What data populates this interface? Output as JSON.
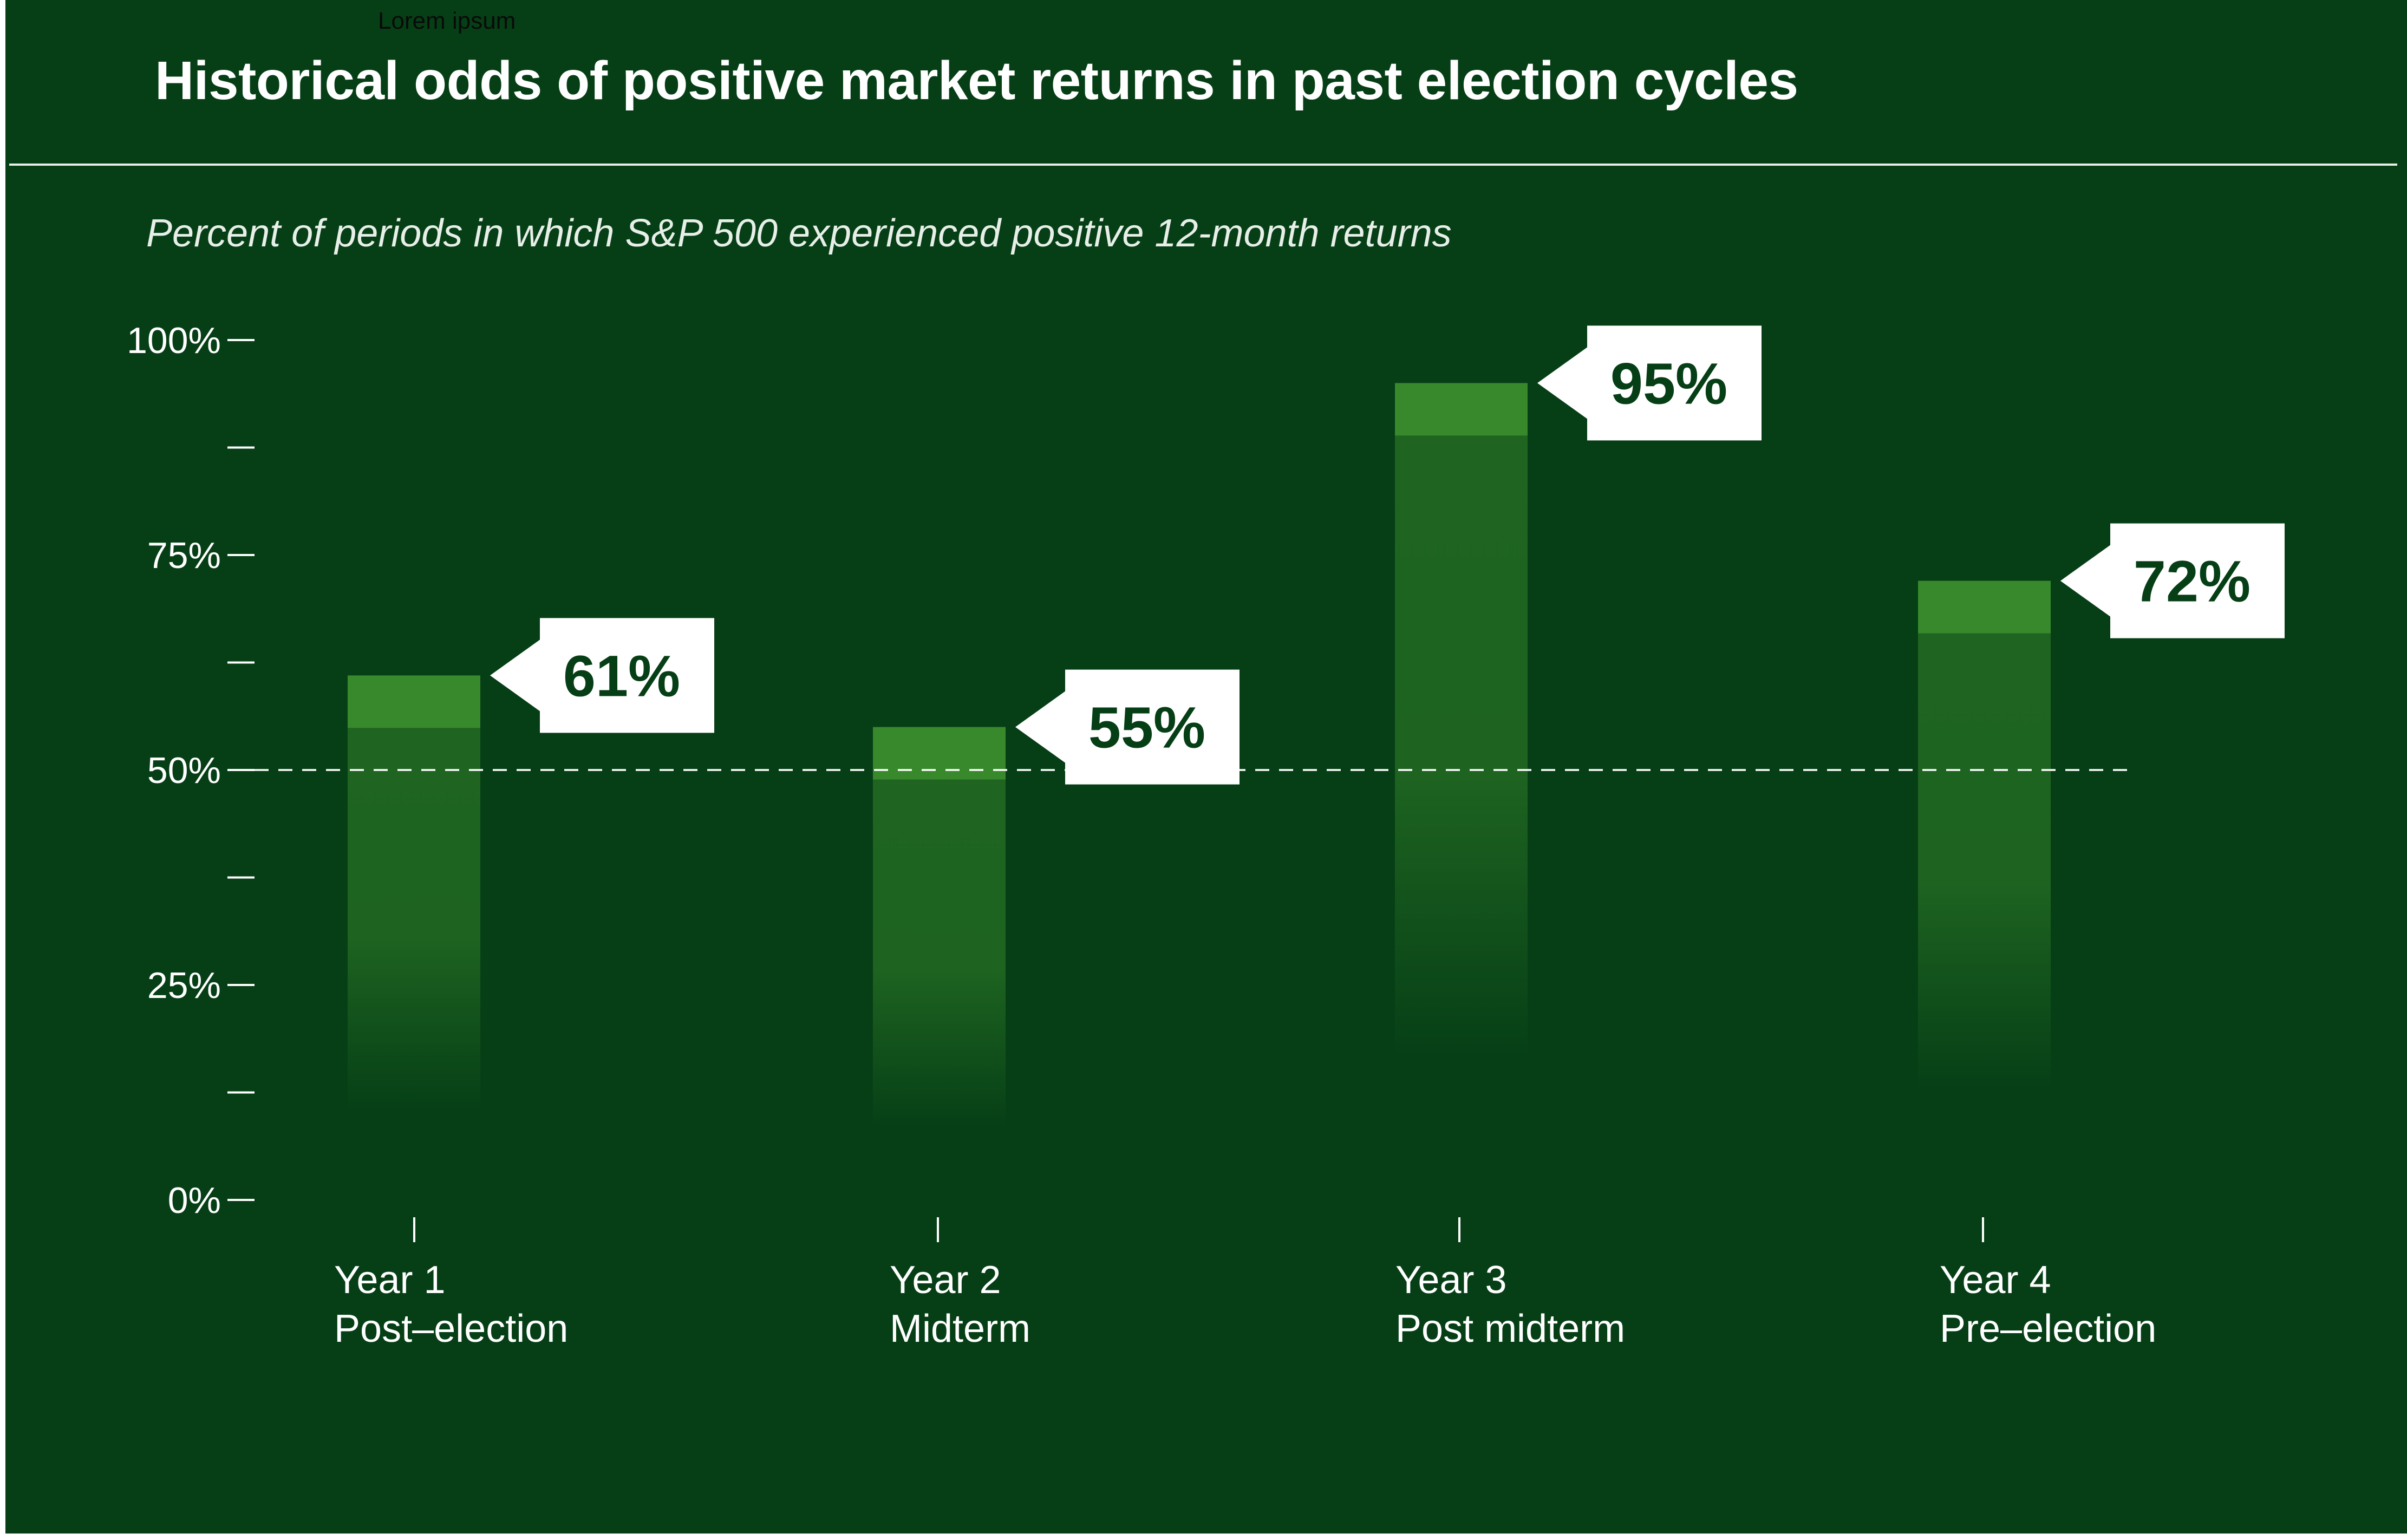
{
  "header": {
    "top_label": "Lorem ipsum",
    "title": "Historical odds of positive market returns in past election cycles",
    "subtitle": "Percent of periods in which S&P 500 experienced positive 12-month returns"
  },
  "colors": {
    "background": "#063f16",
    "bar_cap": "#37892c",
    "bar_body": "#1f6521",
    "label_box": "#ffffff",
    "label_text": "#063f16",
    "text": "#ffffff"
  },
  "chart_data": {
    "type": "bar",
    "title": "Historical odds of positive market returns in past election cycles",
    "subtitle": "Percent of periods in which S&P 500 experienced positive 12-month returns",
    "xlabel": "",
    "ylabel": "",
    "ylim": [
      0,
      100
    ],
    "yticks": [
      0,
      25,
      50,
      75,
      100
    ],
    "ytick_labels": [
      "0%",
      "25%",
      "50%",
      "75%",
      "100%"
    ],
    "y_minor_ticks": [
      12.5,
      37.5,
      62.5,
      87.5
    ],
    "reference_line": 50,
    "categories": [
      {
        "line1": "Year 1",
        "line2": "Post–election"
      },
      {
        "line1": "Year 2",
        "line2": "Midterm"
      },
      {
        "line1": "Year 3",
        "line2": "Post midterm"
      },
      {
        "line1": "Year 4",
        "line2": "Pre–election"
      }
    ],
    "values": [
      61,
      55,
      95,
      72
    ],
    "value_labels": [
      "61%",
      "55%",
      "95%",
      "72%"
    ],
    "grid": false,
    "legend": "none"
  }
}
